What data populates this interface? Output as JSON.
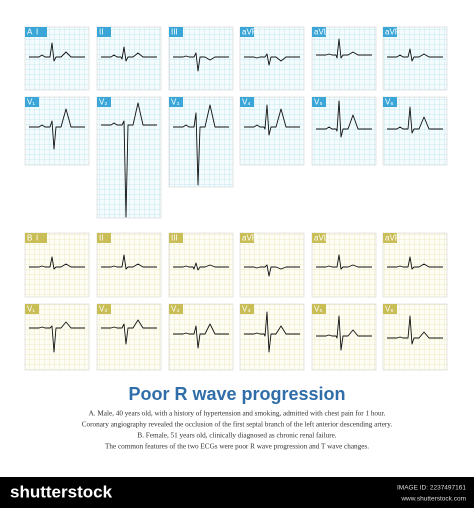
{
  "panel_a": {
    "label": "A",
    "leads": [
      "I",
      "II",
      "III",
      "aVR",
      "aVL",
      "aVF",
      "V₁",
      "V₂",
      "V₃",
      "V₄",
      "V₅",
      "V₆"
    ]
  },
  "panel_b": {
    "label": "B",
    "leads": [
      "I",
      "II",
      "III",
      "aVR",
      "aVL",
      "aVF",
      "V₁",
      "V₂",
      "V₃",
      "V₄",
      "V₅",
      "V₆"
    ]
  },
  "title": "Poor R wave progression",
  "caption": [
    "A. Male, 40 years old, with a history of hypertension and smoking, admitted with chest pain for 1 hour.",
    "Coronary angiography revealed the occlusion of the first septal branch of the left anterior descending artery.",
    "B. Female, 51 years old, clinically diagnosed as chronic renal failure.",
    "The common features of the two ECGs were poor R wave progression and T wave changes."
  ],
  "footer": {
    "brand": "shutterstock",
    "image_id": "IMAGE ID: 2237497161",
    "site": "www.shutterstock.com"
  }
}
